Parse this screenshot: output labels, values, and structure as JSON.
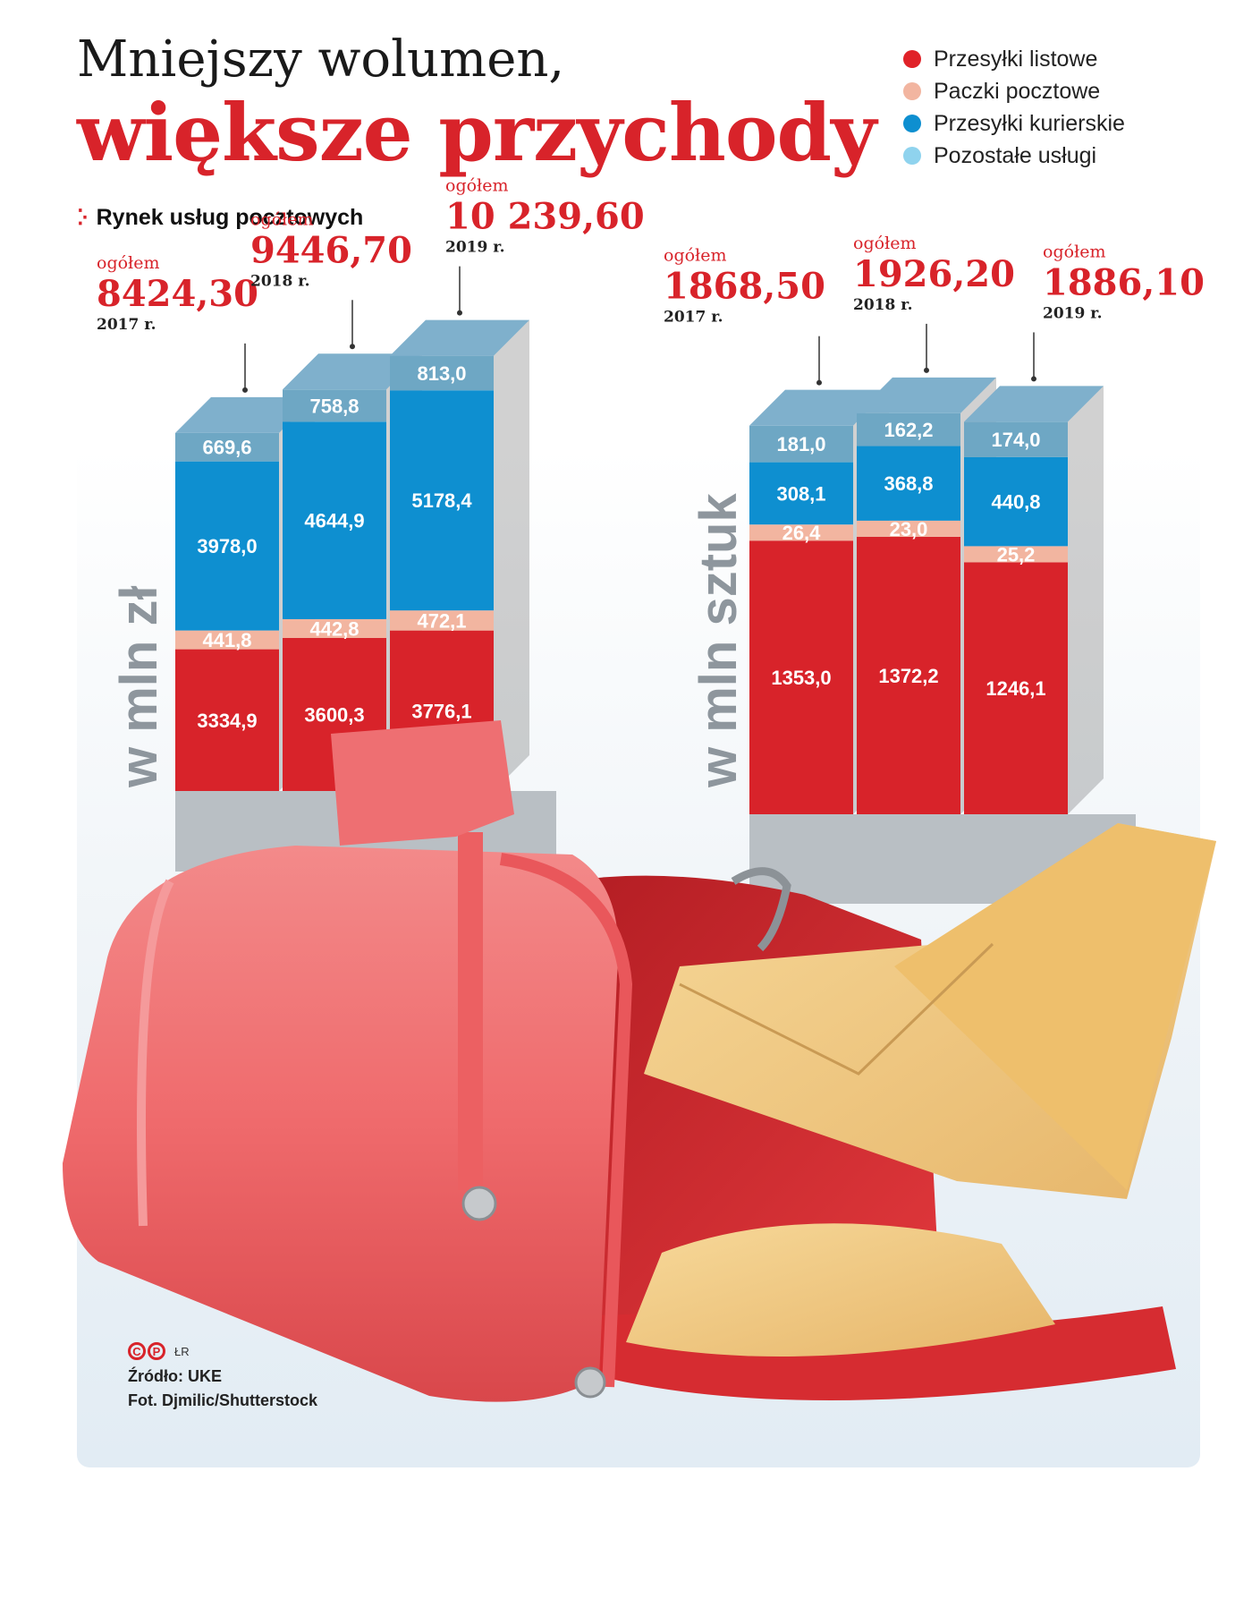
{
  "title": {
    "line1": "Mniejszy wolumen,",
    "line2": "większe przychody"
  },
  "subtitle": "Rynek usług pocztowych",
  "legend": [
    {
      "label": "Przesyłki listowe",
      "color": "#e02228"
    },
    {
      "label": "Paczki pocztowe",
      "color": "#f2b5a0"
    },
    {
      "label": "Przesyłki kurierskie",
      "color": "#0e8fd0"
    },
    {
      "label": "Pozostałe usługi",
      "color": "#8fd3ee"
    }
  ],
  "chart_data": [
    {
      "type": "bar",
      "stacked": true,
      "unit_label": "w mln zł",
      "total_label": "ogółem",
      "categories": [
        "2017 r.",
        "2018 r.",
        "2019 r."
      ],
      "totals": [
        "8424,30",
        "9446,70",
        "10 239,60"
      ],
      "series": [
        {
          "name": "Przesyłki listowe",
          "values": [
            3334.9,
            3600.3,
            3776.1
          ],
          "labels": [
            "3334,9",
            "3600,3",
            "3776,1"
          ]
        },
        {
          "name": "Paczki pocztowe",
          "values": [
            441.8,
            442.8,
            472.1
          ],
          "labels": [
            "441,8",
            "442,8",
            "472,1"
          ]
        },
        {
          "name": "Przesyłki kurierskie",
          "values": [
            3978.0,
            4644.9,
            5178.4
          ],
          "labels": [
            "3978,0",
            "4644,9",
            "5178,4"
          ]
        },
        {
          "name": "Pozostałe usługi",
          "values": [
            669.6,
            758.8,
            813.0
          ],
          "labels": [
            "669,6",
            "758,8",
            "813,0"
          ]
        }
      ]
    },
    {
      "type": "bar",
      "stacked": true,
      "unit_label": "w mln sztuk",
      "total_label": "ogółem",
      "categories": [
        "2017 r.",
        "2018 r.",
        "2019 r."
      ],
      "totals": [
        "1868,50",
        "1926,20",
        "1886,10"
      ],
      "series": [
        {
          "name": "Przesyłki listowe",
          "values": [
            1353.0,
            1372.2,
            1246.1
          ],
          "labels": [
            "1353,0",
            "1372,2",
            "1246,1"
          ]
        },
        {
          "name": "Paczki pocztowe",
          "values": [
            26.4,
            23.0,
            25.2
          ],
          "labels": [
            "26,4",
            "23,0",
            "25,2"
          ]
        },
        {
          "name": "Przesyłki kurierskie",
          "values": [
            308.1,
            368.8,
            440.8
          ],
          "labels": [
            "308,1",
            "368,8",
            "440,8"
          ]
        },
        {
          "name": "Pozostałe usługi",
          "values": [
            181.0,
            162.2,
            174.0
          ],
          "labels": [
            "181,0",
            "162,2",
            "174,0"
          ]
        }
      ]
    }
  ],
  "credits": {
    "cp": "CP",
    "lr": "ŁR",
    "source": "Źródło: UKE",
    "photo": "Fot. Djmilic/Shutterstock"
  }
}
